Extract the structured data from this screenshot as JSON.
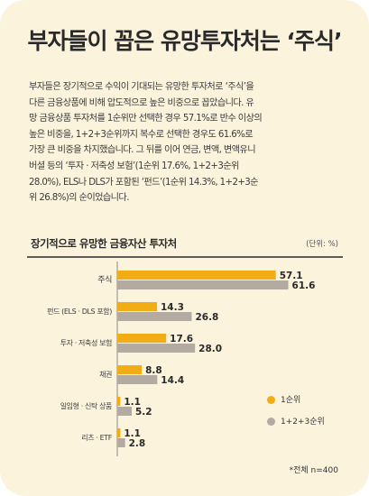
{
  "headline": "부자들이 꼽은 유망투자처는 ‘주식’",
  "paragraph": [
    "부자들은 장기적으로 수익이 기대되는 유망한 투자처로 ‘주식’을",
    "다른 금융상품에 비해 압도적으로 높은 비중으로 꼽았습니다. 유",
    "망 금융상품 투자처를 1순위만 선택한 경우 57.1%로 반수 이상의",
    "높은 비중을, 1+2+3순위까지 복수로 선택한 경우도 61.6%로",
    "가장 큰 비중을 차지했습니다. 그 뒤를 이어 연금, 변액, 변액유니",
    "버셜 등의 ‘투자 · 저축성 보험’(1순위 17.6%, 1+2+3순위",
    "28.0%), ELS나 DLS가 포함된 ‘펀드’(1순위 14.3%, 1+2+3순",
    "위 26.8%)의 순이었습니다."
  ],
  "chart_title": "장기적으로 유망한 금융자산 투자처",
  "unit_label": "(단위: %)",
  "total_note": "*전체 n=400",
  "colors": {
    "rank1": "#f2ad16",
    "rank123": "#b3aba1"
  },
  "chart_data": {
    "type": "bar",
    "orientation": "horizontal",
    "categories": [
      "주식",
      "펀드 (ELS · DLS 포함)",
      "투자 · 저축성 보험",
      "채권",
      "일임형 · 신탁 상품",
      "리츠 · ETF"
    ],
    "series": [
      {
        "name": "1순위",
        "values": [
          57.1,
          14.3,
          17.6,
          8.8,
          1.1,
          1.1
        ]
      },
      {
        "name": "1+2+3순위",
        "values": [
          61.6,
          26.8,
          28.0,
          14.4,
          5.2,
          2.8
        ]
      }
    ],
    "legend_position": "right",
    "grid": false
  }
}
